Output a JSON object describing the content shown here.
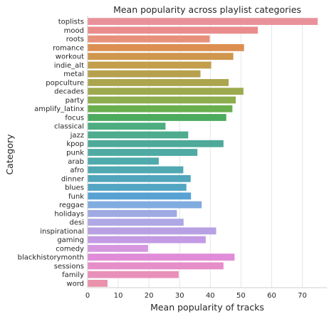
{
  "chart_data": {
    "type": "bar",
    "orientation": "horizontal",
    "title": "Mean popularity across playlist categories",
    "xlabel": "Mean popularity of tracks",
    "ylabel": "Category",
    "xlim": [
      0,
      78
    ],
    "xticks": [
      0,
      10,
      20,
      30,
      40,
      50,
      60,
      70
    ],
    "grid": "vertical",
    "categories": [
      "toplists",
      "mood",
      "roots",
      "romance",
      "workout",
      "indie_alt",
      "metal",
      "popculture",
      "decades",
      "party",
      "amplify_latinx",
      "focus",
      "classical",
      "jazz",
      "kpop",
      "punk",
      "arab",
      "afro",
      "dinner",
      "blues",
      "funk",
      "reggae",
      "holidays",
      "desi",
      "inspirational",
      "gaming",
      "comedy",
      "blackhistorymonth",
      "sessions",
      "family",
      "word"
    ],
    "values": [
      75,
      55.5,
      39.8,
      51,
      47.5,
      40.3,
      36.8,
      46,
      50.8,
      48.3,
      47.2,
      45.2,
      25.4,
      32.8,
      44.3,
      35.8,
      23.2,
      31.2,
      33.6,
      32.2,
      33.7,
      37.2,
      29.1,
      31.3,
      41.9,
      38.5,
      19.7,
      47.9,
      44.3,
      29.7,
      6.5
    ],
    "colors": [
      "#e9919a",
      "#e98c8c",
      "#e7907b",
      "#dc8f51",
      "#cf964d",
      "#c39e4d",
      "#b7a14e",
      "#aaa54e",
      "#9da94e",
      "#8dad4e",
      "#6aaf4e",
      "#4cab5e",
      "#4dad80",
      "#4eab8e",
      "#4ea999",
      "#4faaa3",
      "#4faaab",
      "#50a8b2",
      "#51a6bb",
      "#53a5c4",
      "#58a2d3",
      "#80acdf",
      "#9fa9e2",
      "#afa8e5",
      "#b7a1e3",
      "#c39ae3",
      "#d697e0",
      "#e18cd8",
      "#e68ec8",
      "#e990ba",
      "#ea92ab"
    ]
  }
}
